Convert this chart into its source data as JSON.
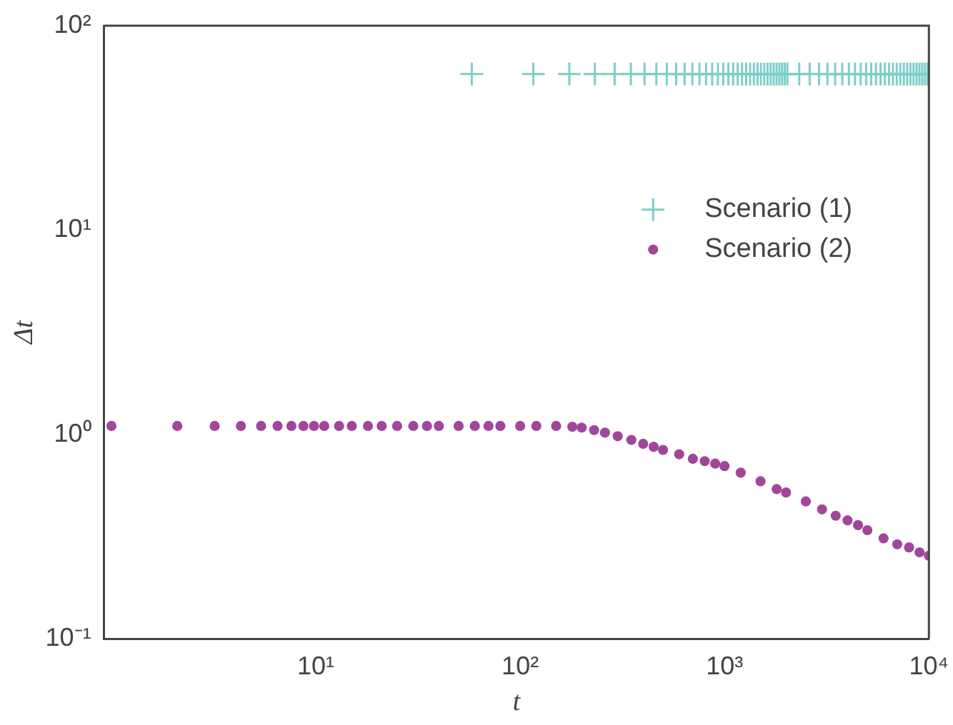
{
  "chart_data": {
    "type": "scatter",
    "xlabel": "t",
    "ylabel": "Δt",
    "log": "xy",
    "grid": false,
    "legend": "right",
    "xlim": [
      0.92,
      10000
    ],
    "ylim": [
      0.1,
      100
    ],
    "xticks": [
      {
        "value": 10,
        "label": "10¹"
      },
      {
        "value": 100,
        "label": "10²"
      },
      {
        "value": 1000,
        "label": "10³"
      },
      {
        "value": 10000,
        "label": "10⁴"
      }
    ],
    "yticks": [
      {
        "value": 0.1,
        "label": "10⁻¹"
      },
      {
        "value": 1,
        "label": "10⁰"
      },
      {
        "value": 10,
        "label": "10¹"
      },
      {
        "value": 100,
        "label": "10²"
      }
    ],
    "series": [
      {
        "name": "Scenario (1)",
        "color": "#7ececa",
        "marker": "cross",
        "x": [
          58,
          116,
          174,
          232,
          290,
          348,
          406,
          464,
          522,
          580,
          638,
          696,
          754,
          812,
          870,
          928,
          986,
          1044,
          1102,
          1160,
          1218,
          1276,
          1334,
          1392,
          1450,
          1508,
          1566,
          1624,
          1682,
          1740,
          1798,
          1856,
          1914,
          1972,
          2030,
          2320,
          2610,
          2900,
          3190,
          3480,
          3770,
          4060,
          4350,
          4640,
          4930,
          5220,
          5510,
          5800,
          6090,
          6380,
          6670,
          6960,
          7250,
          7540,
          7830,
          8120,
          8410,
          8700,
          8990,
          9280,
          9570,
          9860
        ],
        "values": [
          58,
          58,
          58,
          58,
          58,
          58,
          58,
          58,
          58,
          58,
          58,
          58,
          58,
          58,
          58,
          58,
          58,
          58,
          58,
          58,
          58,
          58,
          58,
          58,
          58,
          58,
          58,
          58,
          58,
          58,
          58,
          58,
          58,
          58,
          58,
          58,
          58,
          58,
          58,
          58,
          58,
          58,
          58,
          58,
          58,
          58,
          58,
          58,
          58,
          58,
          58,
          58,
          58,
          58,
          58,
          58,
          58,
          58,
          58,
          58,
          58,
          58
        ]
      },
      {
        "name": "Scenario (2)",
        "color": "#a0479c",
        "marker": "circle",
        "x": [
          1,
          2.1,
          3.2,
          4.3,
          5.4,
          6.5,
          7.6,
          8.7,
          9.8,
          11,
          13,
          15,
          18,
          21,
          25,
          30,
          35,
          40,
          50,
          60,
          70,
          80,
          100,
          120,
          150,
          180,
          200,
          230,
          260,
          300,
          350,
          400,
          450,
          500,
          600,
          700,
          800,
          900,
          1000,
          1200,
          1500,
          1800,
          2000,
          2500,
          3000,
          3500,
          4000,
          4500,
          5000,
          6000,
          7000,
          8000,
          9000,
          10000
        ],
        "values": [
          1.1,
          1.1,
          1.1,
          1.1,
          1.1,
          1.1,
          1.1,
          1.1,
          1.1,
          1.1,
          1.1,
          1.1,
          1.1,
          1.1,
          1.1,
          1.1,
          1.1,
          1.1,
          1.1,
          1.1,
          1.1,
          1.1,
          1.1,
          1.1,
          1.1,
          1.09,
          1.08,
          1.05,
          1.02,
          0.98,
          0.94,
          0.9,
          0.87,
          0.84,
          0.8,
          0.76,
          0.74,
          0.72,
          0.7,
          0.65,
          0.59,
          0.54,
          0.52,
          0.47,
          0.43,
          0.4,
          0.38,
          0.36,
          0.34,
          0.31,
          0.29,
          0.28,
          0.265,
          0.255
        ]
      }
    ]
  }
}
